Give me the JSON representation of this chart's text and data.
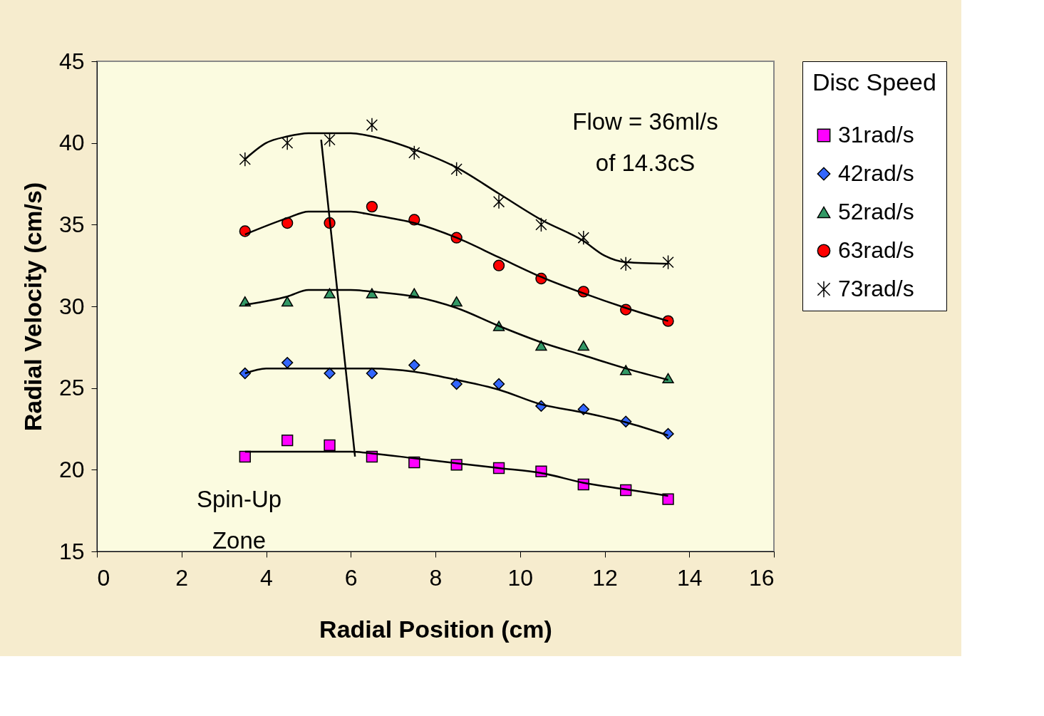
{
  "chart_data": {
    "type": "scatter",
    "xlabel": "Radial Position (cm)",
    "ylabel": "Radial Velocity (cm/s)",
    "legend_title": "Disc Speed",
    "legend": "right",
    "xlim": [
      0,
      16
    ],
    "xticks": [
      0,
      2,
      4,
      6,
      8,
      10,
      12,
      14,
      16
    ],
    "ylim": [
      15,
      45
    ],
    "yticks": [
      15,
      20,
      25,
      30,
      35,
      40,
      45
    ],
    "grid": false,
    "x": [
      3.5,
      4.5,
      5.5,
      6.5,
      7.5,
      8.5,
      9.5,
      10.5,
      11.5,
      12.5,
      13.5
    ],
    "annotations": [
      "Flow  = 36ml/s\nof 14.3cS",
      "Spin-Up\nZone"
    ],
    "series": [
      {
        "name": "31rad/s",
        "color": "#ff00ff",
        "marker": "square",
        "values": [
          20.8,
          21.8,
          21.5,
          20.8,
          20.45,
          20.3,
          20.1,
          19.9,
          19.1,
          18.75,
          18.2
        ]
      },
      {
        "name": "42rad/s",
        "color": "#3366ff",
        "marker": "diamond",
        "values": [
          25.9,
          26.55,
          25.9,
          25.9,
          26.4,
          25.25,
          25.25,
          23.9,
          23.7,
          22.95,
          22.2
        ]
      },
      {
        "name": "52rad/s",
        "color": "#339966",
        "marker": "triangle",
        "values": [
          30.3,
          30.3,
          30.8,
          30.8,
          30.8,
          30.3,
          28.8,
          27.6,
          27.6,
          26.1,
          25.6
        ]
      },
      {
        "name": "63rad/s",
        "color": "#ff0000",
        "marker": "circle",
        "values": [
          34.6,
          35.1,
          35.1,
          36.1,
          35.3,
          34.2,
          32.5,
          31.7,
          30.9,
          29.8,
          29.1
        ]
      },
      {
        "name": "73rad/s",
        "color": "#000000",
        "marker": "cross",
        "values": [
          39.0,
          40.0,
          40.2,
          41.1,
          39.4,
          38.4,
          36.4,
          35.0,
          34.2,
          32.6,
          32.7
        ]
      },
      {
        "type": "line",
        "color": "#000000",
        "x": [
          3.5,
          4.5,
          5.0,
          6.0,
          6.5,
          7.5,
          8.5,
          9.5,
          10.5,
          11.5,
          12.5,
          13.5
        ],
        "values": [
          21.1,
          21.1,
          21.1,
          21.1,
          21.0,
          20.7,
          20.4,
          20.1,
          19.8,
          19.2,
          18.8,
          18.4
        ]
      },
      {
        "type": "line",
        "color": "#000000",
        "x": [
          3.5,
          4.0,
          5.0,
          6.0,
          6.5,
          7.5,
          8.5,
          9.5,
          10.5,
          11.5,
          12.5,
          13.5
        ],
        "values": [
          25.9,
          26.2,
          26.2,
          26.2,
          26.2,
          26.0,
          25.5,
          24.9,
          24.0,
          23.5,
          22.9,
          22.1
        ]
      },
      {
        "type": "line",
        "color": "#000000",
        "x": [
          3.5,
          4.5,
          5.0,
          6.0,
          6.5,
          7.5,
          8.5,
          9.5,
          10.5,
          11.5,
          12.5,
          13.5
        ],
        "values": [
          30.1,
          30.6,
          31.0,
          31.0,
          30.9,
          30.6,
          29.9,
          28.8,
          27.8,
          27.0,
          26.2,
          25.5
        ]
      },
      {
        "type": "line",
        "color": "#000000",
        "x": [
          3.5,
          4.5,
          5.0,
          6.0,
          6.5,
          7.5,
          8.5,
          9.5,
          10.5,
          11.5,
          12.5,
          13.5
        ],
        "values": [
          34.4,
          35.4,
          35.8,
          35.8,
          35.6,
          35.1,
          34.2,
          33.0,
          31.8,
          30.8,
          29.9,
          29.1
        ]
      },
      {
        "type": "line",
        "color": "#000000",
        "x": [
          3.5,
          4.0,
          4.5,
          5.0,
          6.0,
          6.5,
          7.5,
          8.5,
          9.5,
          10.5,
          11.5,
          12.0,
          12.5,
          13.5
        ],
        "values": [
          39.0,
          40.0,
          40.4,
          40.6,
          40.6,
          40.4,
          39.6,
          38.5,
          36.9,
          35.3,
          34.0,
          33.1,
          32.7,
          32.6
        ]
      },
      {
        "type": "line",
        "color": "#000000",
        "x": [
          5.3,
          6.1
        ],
        "values": [
          40.2,
          20.8
        ]
      }
    ]
  }
}
